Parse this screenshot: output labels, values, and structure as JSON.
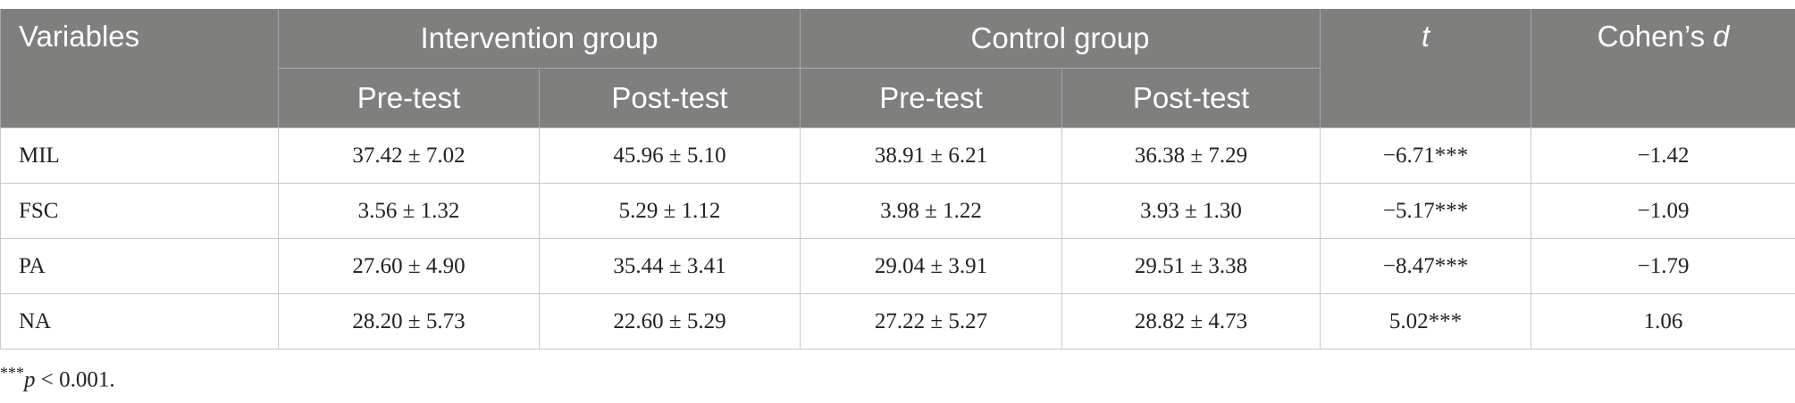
{
  "table": {
    "header": {
      "variables": "Variables",
      "intervention": "Intervention group",
      "control": "Control group",
      "t": "t",
      "cohens": "Cohen’s",
      "d": "d",
      "sub": [
        "Pre-test",
        "Post-test",
        "Pre-test",
        "Post-test"
      ]
    },
    "rows": [
      [
        "MIL",
        "37.42 ± 7.02",
        "45.96 ± 5.10",
        "38.91 ± 6.21",
        "36.38 ± 7.29",
        "−6.71***",
        "−1.42"
      ],
      [
        "FSC",
        "3.56 ± 1.32",
        "5.29 ± 1.12",
        "3.98 ± 1.22",
        "3.93 ± 1.30",
        "−5.17***",
        "−1.09"
      ],
      [
        "PA",
        "27.60 ± 4.90",
        "35.44 ± 3.41",
        "29.04 ± 3.91",
        "29.51 ± 3.38",
        "−8.47***",
        "−1.79"
      ],
      [
        "NA",
        "28.20 ± 5.73",
        "22.60 ± 5.29",
        "27.22 ± 5.27",
        "28.82 ± 4.73",
        "5.02***",
        "1.06"
      ]
    ]
  },
  "footnote": {
    "stars": "***",
    "p": "p",
    "text": "< 0.001."
  }
}
